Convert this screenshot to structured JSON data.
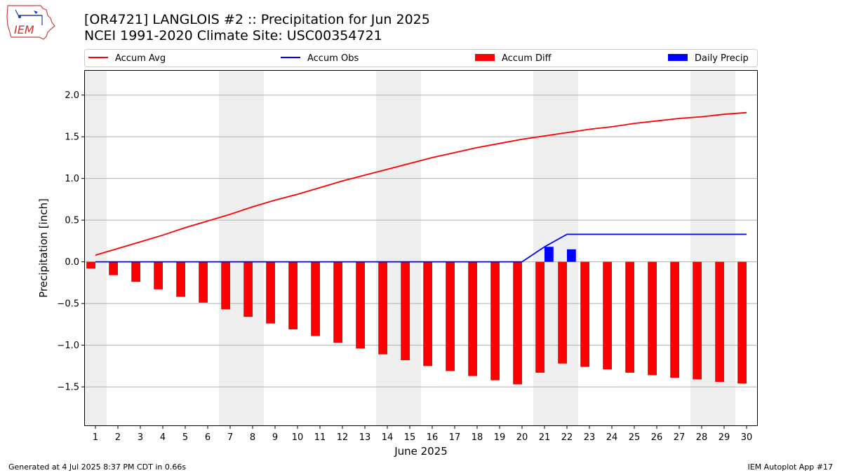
{
  "header": {
    "title": "[OR4721] LANGLOIS #2 :: Precipitation for Jun 2025",
    "subtitle": "NCEI 1991-2020 Climate Site: USC00354721",
    "logo_text": "IEM"
  },
  "footer": {
    "left": "Generated at 4 Jul 2025 8:37 PM CDT in 0.66s",
    "right": "IEM Autoplot App #17"
  },
  "chart_data": {
    "type": "bar",
    "title": "[OR4721] LANGLOIS #2 :: Precipitation for Jun 2025",
    "subtitle": "NCEI 1991-2020 Climate Site: USC00354721",
    "xlabel": "June 2025",
    "ylabel": "Precipitation [inch]",
    "xlim": [
      0.5,
      30.5
    ],
    "ylim": [
      -1.97,
      2.3
    ],
    "yticks": [
      -1.5,
      -1.0,
      -0.5,
      0.0,
      0.5,
      1.0,
      1.5,
      2.0
    ],
    "ytick_labels": [
      "−1.5",
      "−1.0",
      "−0.5",
      "0.0",
      "0.5",
      "1.0",
      "1.5",
      "2.0"
    ],
    "grid": "horizontal",
    "legend_placement": "top",
    "weekend_shading": [
      [
        0.5,
        1.5
      ],
      [
        6.5,
        8.5
      ],
      [
        13.5,
        15.5
      ],
      [
        20.5,
        22.5
      ],
      [
        27.5,
        29.5
      ]
    ],
    "categories": [
      "1",
      "2",
      "3",
      "4",
      "5",
      "6",
      "7",
      "8",
      "9",
      "10",
      "11",
      "12",
      "13",
      "14",
      "15",
      "16",
      "17",
      "18",
      "19",
      "20",
      "21",
      "22",
      "23",
      "24",
      "25",
      "26",
      "27",
      "28",
      "29",
      "30"
    ],
    "series": [
      {
        "name": "Accum Avg",
        "kind": "line",
        "color": "#ff0000",
        "values": [
          0.08,
          0.16,
          0.24,
          0.32,
          0.41,
          0.49,
          0.57,
          0.66,
          0.74,
          0.81,
          0.89,
          0.97,
          1.04,
          1.11,
          1.18,
          1.25,
          1.31,
          1.37,
          1.42,
          1.47,
          1.51,
          1.55,
          1.59,
          1.62,
          1.66,
          1.69,
          1.72,
          1.74,
          1.77,
          1.79
        ]
      },
      {
        "name": "Accum Obs",
        "kind": "line",
        "color": "#0000ff",
        "values": [
          0,
          0,
          0,
          0,
          0,
          0,
          0,
          0,
          0,
          0,
          0,
          0,
          0,
          0,
          0,
          0,
          0,
          0,
          0,
          0,
          0.18,
          0.33,
          0.33,
          0.33,
          0.33,
          0.33,
          0.33,
          0.33,
          0.33,
          0.33
        ]
      },
      {
        "name": "Accum Diff",
        "kind": "bar",
        "color": "#ff0000",
        "values": [
          -0.08,
          -0.16,
          -0.24,
          -0.33,
          -0.42,
          -0.49,
          -0.57,
          -0.66,
          -0.74,
          -0.81,
          -0.89,
          -0.97,
          -1.04,
          -1.11,
          -1.18,
          -1.25,
          -1.31,
          -1.37,
          -1.42,
          -1.47,
          -1.33,
          -1.22,
          -1.26,
          -1.29,
          -1.33,
          -1.36,
          -1.39,
          -1.41,
          -1.44,
          -1.46
        ]
      },
      {
        "name": "Daily Precip",
        "kind": "bar",
        "color": "#0000ff",
        "values": [
          0,
          0,
          0,
          0,
          0,
          0,
          0,
          0,
          0,
          0,
          0,
          0,
          0,
          0,
          0,
          0,
          0,
          0,
          0,
          0,
          0.18,
          0.15,
          0,
          0,
          0,
          0,
          0,
          0,
          0,
          0
        ]
      }
    ]
  }
}
